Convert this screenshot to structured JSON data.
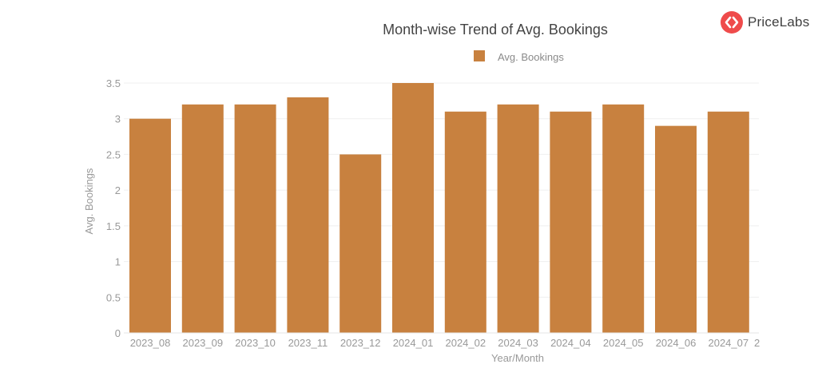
{
  "brand": {
    "name": "PriceLabs",
    "icon": "pricelabs-logo-icon",
    "color": "#ef4b4b"
  },
  "chart_data": {
    "type": "bar",
    "title": "Month-wise Trend of Avg. Bookings",
    "xlabel": "Year/Month",
    "ylabel": "Avg. Bookings",
    "categories": [
      "2023_08",
      "2023_09",
      "2023_10",
      "2023_11",
      "2023_12",
      "2024_01",
      "2024_02",
      "2024_03",
      "2024_04",
      "2024_05",
      "2024_06",
      "2024_07"
    ],
    "series": [
      {
        "name": "Avg. Bookings",
        "color": "#c8813f",
        "values": [
          3.0,
          3.2,
          3.2,
          3.3,
          2.5,
          3.5,
          3.1,
          3.2,
          3.1,
          3.2,
          2.9,
          3.1
        ]
      }
    ],
    "ylim": [
      0,
      3.5
    ],
    "yticks": [
      "0",
      "0.5",
      "1",
      "1.5",
      "2",
      "2.5",
      "3",
      "3.5"
    ],
    "grid": true,
    "legend": "top-center",
    "truncated_next_label": "2"
  }
}
